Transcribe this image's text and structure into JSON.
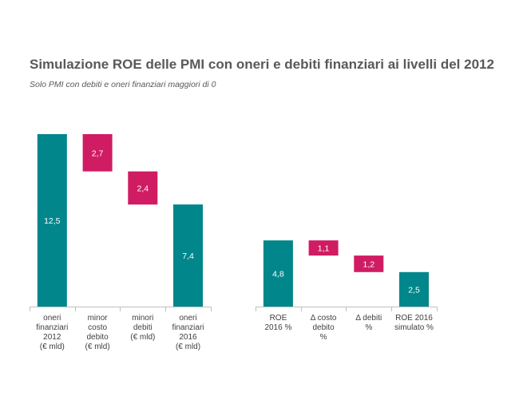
{
  "chart_data": {
    "type": "bar",
    "subtype": "waterfall",
    "title": "Simulazione ROE delle PMI con oneri e debiti finanziari ai livelli del 2012",
    "subtitle": "Solo PMI con debiti e oneri finanziari maggiori di 0",
    "xlabel": "",
    "ylabel": "",
    "grid": false,
    "legend": "none",
    "colors": {
      "total": "#00868b",
      "delta": "#d01c63"
    },
    "groups": [
      {
        "ymax": 12.5,
        "bars": [
          {
            "category": [
              "oneri",
              "finanziari",
              "2012",
              "(€ mld)"
            ],
            "kind": "total",
            "value": 12.5,
            "base": 0,
            "label": "12,5"
          },
          {
            "category": [
              "minor",
              "costo",
              "debito",
              "(€ mld)"
            ],
            "kind": "delta",
            "value": 2.7,
            "base": 9.8,
            "label": "2,7"
          },
          {
            "category": [
              "minori",
              "debiti",
              "(€ mld)"
            ],
            "kind": "delta",
            "value": 2.4,
            "base": 7.4,
            "label": "2,4"
          },
          {
            "category": [
              "oneri",
              "finanziari",
              "2016",
              "(€ mld)"
            ],
            "kind": "total",
            "value": 7.4,
            "base": 0,
            "label": "7,4"
          }
        ]
      },
      {
        "ymax": 12.5,
        "bars": [
          {
            "category": [
              "ROE",
              "2016 %"
            ],
            "kind": "total",
            "value": 4.8,
            "base": 0,
            "label": "4,8"
          },
          {
            "category": [
              "Δ costo",
              "debito",
              "%"
            ],
            "kind": "delta",
            "value": 1.1,
            "base": 3.7,
            "label": "1,1"
          },
          {
            "category": [
              "Δ debiti",
              "%"
            ],
            "kind": "delta",
            "value": 1.2,
            "base": 2.5,
            "label": "1,2"
          },
          {
            "category": [
              "ROE 2016",
              "simulato %"
            ],
            "kind": "total",
            "value": 2.5,
            "base": 0,
            "label": "2,5"
          }
        ]
      }
    ]
  }
}
